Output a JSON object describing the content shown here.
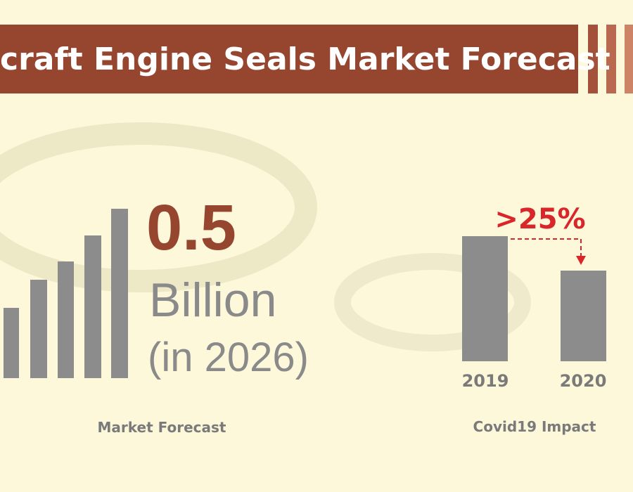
{
  "header": {
    "title": "craft Engine Seals Market Forecast"
  },
  "highlight": {
    "value": "0.5",
    "unit": "Billion",
    "period": "(in 2026)",
    "caption": "Market Forecast"
  },
  "covid": {
    "change": ">25%",
    "years": [
      "2019",
      "2020"
    ],
    "caption": "Covid19 Impact"
  }
}
